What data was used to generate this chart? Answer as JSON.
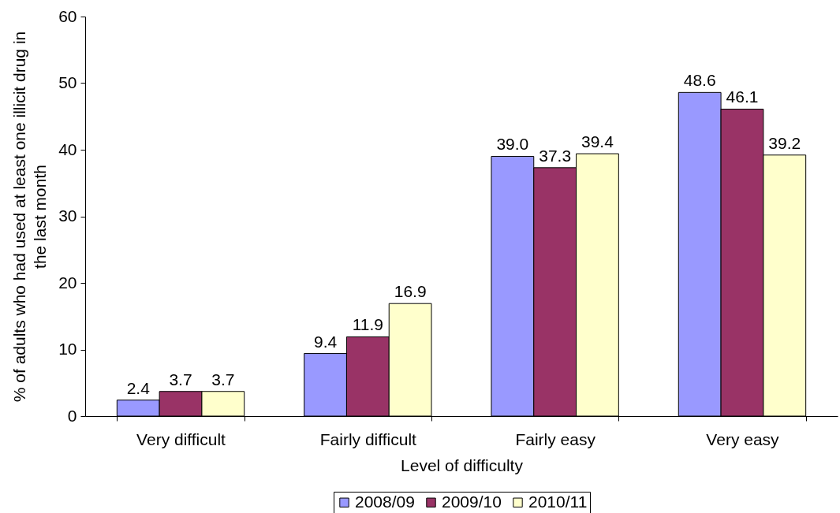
{
  "chart_data": {
    "type": "bar",
    "xlabel": "Level of difficulty",
    "ylabel": "% of adults who had used at least one illicit drug in\nthe last month",
    "categories": [
      "Very difficult",
      "Fairly difficult",
      "Fairly easy",
      "Very easy"
    ],
    "series": [
      {
        "name": "2008/09",
        "color": "#9999ff",
        "values": [
          2.4,
          9.4,
          39.0,
          48.6
        ],
        "value_labels": [
          "2.4",
          "9.4",
          "39.0",
          "48.6"
        ]
      },
      {
        "name": "2009/10",
        "color": "#993366",
        "values": [
          3.7,
          11.9,
          37.3,
          46.1
        ],
        "value_labels": [
          "3.7",
          "11.9",
          "37.3",
          "46.1"
        ]
      },
      {
        "name": "2010/11",
        "color": "#ffffcc",
        "values": [
          3.7,
          16.9,
          39.4,
          39.2
        ],
        "value_labels": [
          "3.7",
          "16.9",
          "39.4",
          "39.2"
        ]
      }
    ],
    "ylim": [
      0,
      60
    ],
    "yticks": [
      0,
      10,
      20,
      30,
      40,
      50,
      60
    ],
    "grid": false,
    "legend": "bottom"
  }
}
